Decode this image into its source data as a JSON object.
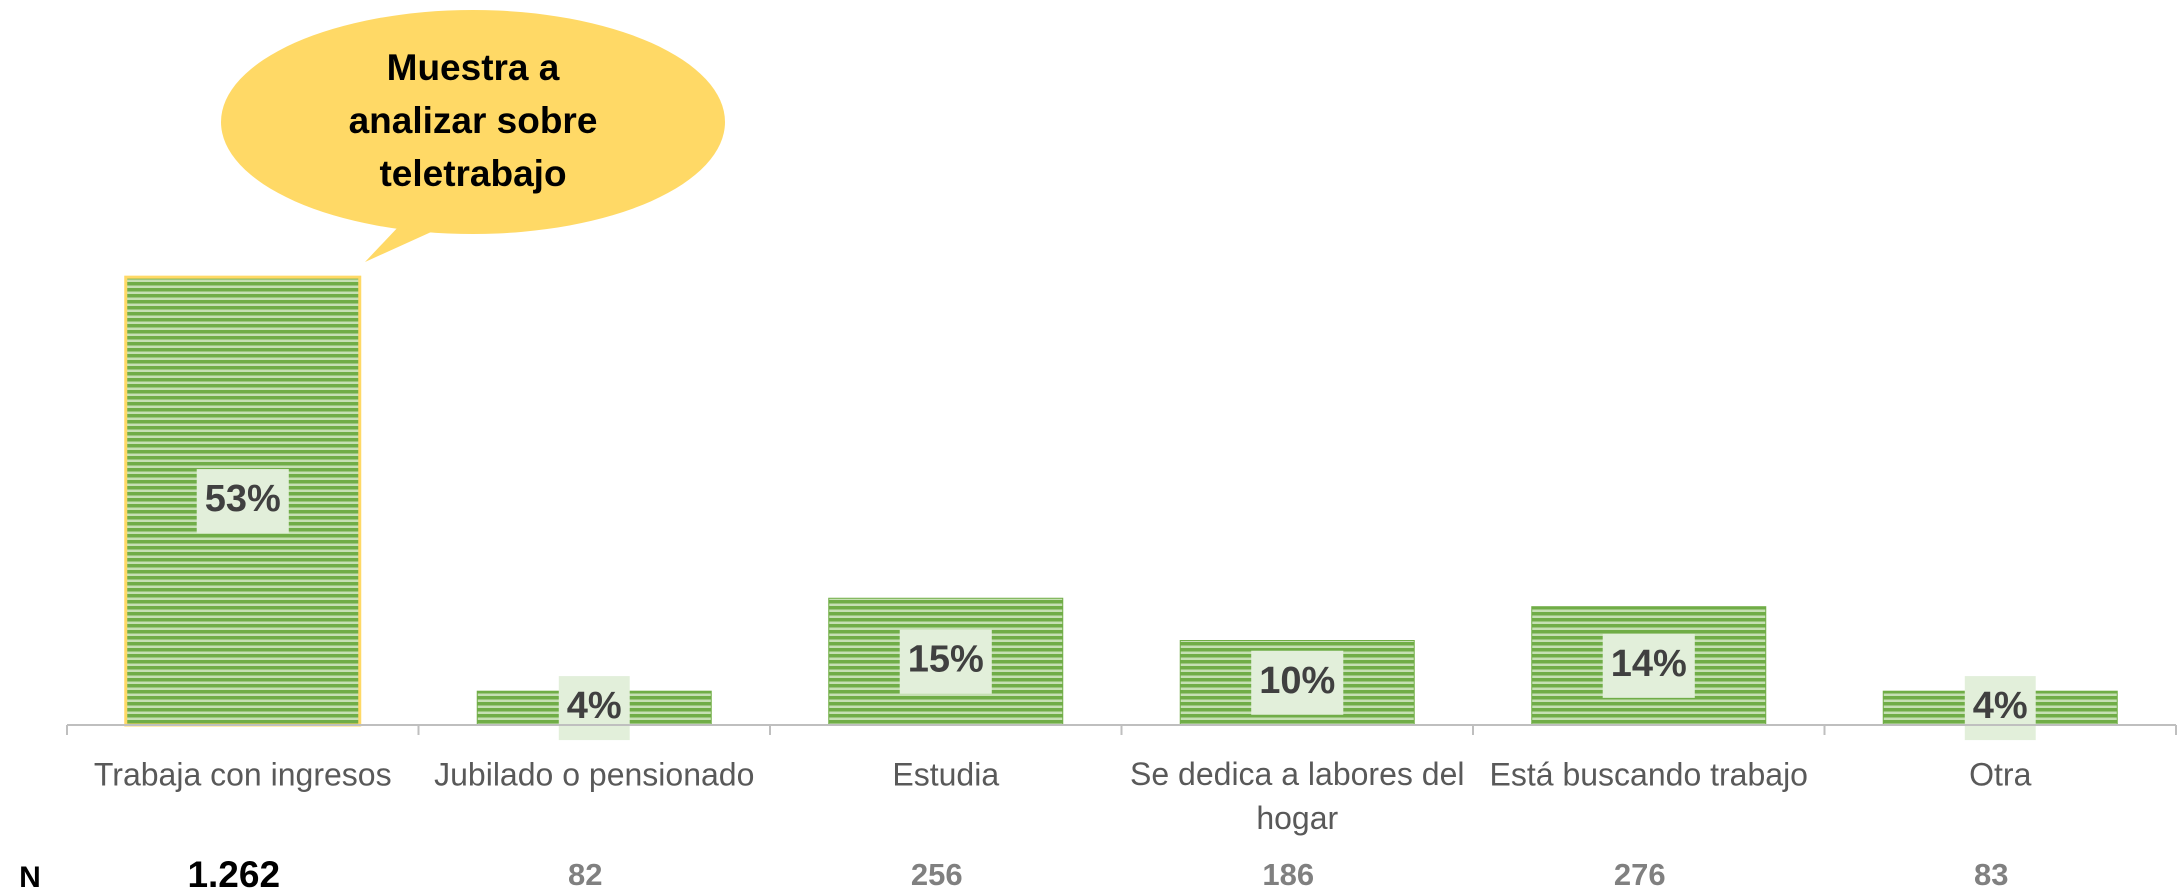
{
  "chart_data": {
    "type": "bar",
    "categories": [
      "Trabaja con ingresos",
      "Jubilado o pensionado",
      "Estudia",
      "Se dedica a labores del hogar",
      "Está buscando trabajo",
      "Otra"
    ],
    "values": [
      53,
      4,
      15,
      10,
      14,
      4
    ],
    "value_labels": [
      "53%",
      "4%",
      "15%",
      "10%",
      "14%",
      "4%"
    ],
    "color": "#70ad47",
    "annotation": [
      "Muestra a",
      "analizar sobre",
      "teletrabajo"
    ],
    "n_label": "N",
    "n_values": [
      "1.262",
      "82",
      "256",
      "186",
      "276",
      "83"
    ]
  }
}
